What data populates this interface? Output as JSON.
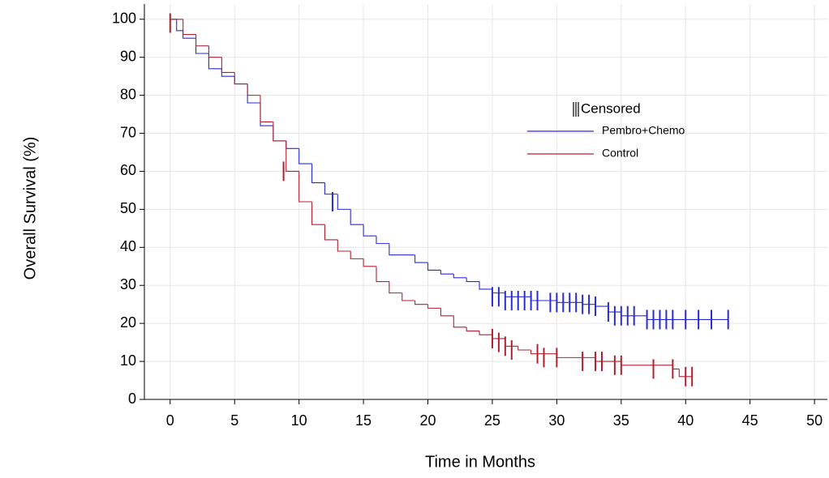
{
  "chart_data": {
    "type": "step",
    "xlabel": "Time in Months",
    "ylabel": "Overall Survival (%)",
    "xlim": [
      -2,
      51
    ],
    "ylim": [
      0,
      104
    ],
    "xticks": [
      0,
      5,
      10,
      15,
      20,
      25,
      30,
      35,
      40,
      45,
      50
    ],
    "yticks": [
      0,
      10,
      20,
      30,
      40,
      50,
      60,
      70,
      80,
      90,
      100
    ],
    "grid": true,
    "legend_title": "Censored",
    "series": [
      {
        "name": "Pembro+Chemo",
        "color": "#2b2bd6",
        "x": [
          0,
          0.5,
          1,
          2,
          3,
          4,
          5,
          6,
          7,
          8,
          9,
          10,
          11,
          12,
          13,
          14,
          15,
          16,
          17,
          19,
          20,
          21,
          22,
          23,
          24,
          25,
          26,
          28,
          30,
          32,
          33,
          34,
          35,
          37,
          43.3
        ],
        "values": [
          100,
          97,
          95,
          91,
          87,
          85,
          83,
          78,
          72,
          68,
          66,
          62,
          57,
          54,
          50,
          46,
          43,
          41,
          38,
          36,
          34,
          33,
          32,
          31,
          29,
          28,
          27,
          26,
          25.5,
          25,
          24.5,
          23,
          22,
          21,
          21
        ],
        "censored_x": [
          12.6,
          25,
          25.5,
          26,
          26.5,
          27,
          27.5,
          28,
          28.5,
          29.5,
          30,
          30.5,
          31,
          31.5,
          32,
          32.5,
          33,
          34,
          34.5,
          35,
          35.5,
          36,
          37,
          37.5,
          38,
          38.5,
          39,
          40,
          41,
          42,
          43.3
        ],
        "censored_values": [
          52,
          27,
          27,
          26,
          26,
          26,
          26,
          26,
          26,
          25.5,
          25.5,
          25.5,
          25.5,
          25.5,
          25,
          25,
          24.5,
          23,
          22,
          22,
          22,
          22,
          21,
          21,
          21,
          21,
          21,
          21,
          21,
          21,
          21
        ]
      },
      {
        "name": "Control",
        "color": "#b0202e",
        "x": [
          0,
          1,
          2,
          3,
          4,
          5,
          6,
          7,
          8,
          9,
          10,
          11,
          12,
          13,
          14,
          15,
          16,
          17,
          18,
          19,
          20,
          21,
          22,
          23,
          24,
          25,
          26,
          27,
          28,
          30,
          33,
          35,
          39,
          39.5,
          40.5
        ],
        "values": [
          100,
          96,
          93,
          90,
          86,
          83,
          80,
          73,
          68,
          60,
          52,
          46,
          42,
          39,
          37,
          35,
          31,
          28,
          26,
          25,
          24,
          22,
          19,
          18,
          17,
          16,
          14,
          13,
          12,
          11,
          10,
          9,
          8,
          6,
          6
        ],
        "censored_x": [
          0,
          8.8,
          25,
          25.5,
          26,
          26.5,
          28.5,
          29,
          30,
          32,
          33,
          33.5,
          34.5,
          35,
          37.5,
          39,
          40,
          40.5
        ],
        "censored_values": [
          99,
          60,
          16,
          15,
          14,
          13,
          12,
          11,
          11,
          10,
          10,
          10,
          9,
          9,
          8,
          8,
          6,
          6
        ]
      }
    ]
  }
}
